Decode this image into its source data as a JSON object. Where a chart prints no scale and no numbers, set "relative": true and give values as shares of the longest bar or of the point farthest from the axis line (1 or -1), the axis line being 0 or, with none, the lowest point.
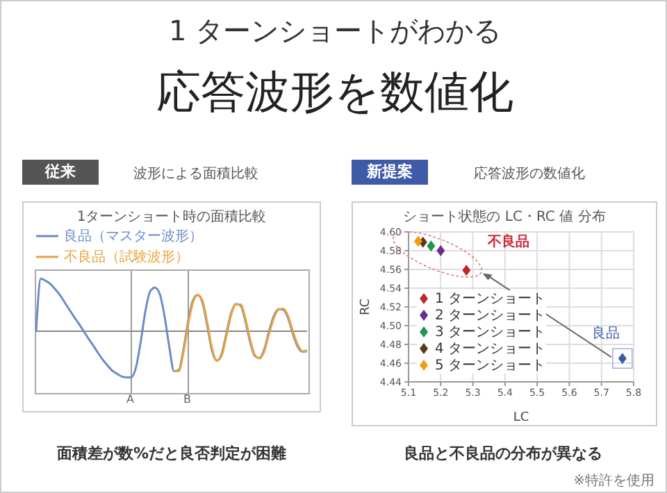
{
  "chart_data": [
    {
      "type": "line",
      "title": "1ターンショート時の面積比較",
      "relative": true,
      "legend": "top",
      "categories": [
        null,
        null,
        null,
        null,
        null,
        null,
        null,
        null,
        null,
        null,
        null,
        null,
        null,
        null,
        null,
        null,
        null,
        null,
        null,
        null,
        null,
        null,
        null,
        null,
        null,
        null,
        null,
        null,
        null,
        null,
        null,
        null,
        null,
        null,
        null,
        null,
        null,
        null,
        null,
        null,
        null,
        null,
        null,
        null,
        null,
        null,
        null,
        null,
        null,
        null,
        null,
        null,
        null,
        null,
        null,
        null,
        null,
        null
      ],
      "series": [
        {
          "name": "良品（マスター波形）",
          "color": "#6b8cc7",
          "values": [
            0,
            1.0,
            0.96,
            0.9,
            0.8,
            0.69,
            0.55,
            0.41,
            0.27,
            0.14,
            0,
            -0.14,
            -0.27,
            -0.41,
            -0.54,
            -0.65,
            -0.75,
            -0.81,
            -0.86,
            -0.88,
            -0.88,
            -0.69,
            -0.2,
            0.39,
            0.76,
            0.83,
            0.71,
            0.29,
            -0.29,
            -0.76,
            -0.74,
            -0.34,
            0.2,
            0.59,
            0.69,
            0.54,
            0.1,
            -0.37,
            -0.56,
            -0.44,
            -0.05,
            0.34,
            0.52,
            0.49,
            0.2,
            -0.2,
            -0.47,
            -0.51,
            -0.34,
            0,
            0.29,
            0.42,
            0.41,
            0.25,
            -0.05,
            -0.29,
            -0.39,
            -0.37
          ]
        },
        {
          "name": "不良品（試験波形）",
          "color": "#e8a33c",
          "values": [
            null,
            null,
            null,
            null,
            null,
            null,
            null,
            null,
            null,
            null,
            null,
            null,
            null,
            null,
            null,
            null,
            null,
            null,
            null,
            null,
            null,
            null,
            null,
            null,
            null,
            null,
            null,
            null,
            null,
            -0.76,
            -0.76,
            -0.4,
            0.14,
            0.55,
            0.69,
            0.58,
            0.16,
            -0.32,
            -0.56,
            -0.47,
            -0.1,
            0.3,
            0.51,
            0.51,
            0.25,
            -0.15,
            -0.45,
            -0.52,
            -0.38,
            -0.05,
            0.25,
            0.41,
            0.43,
            0.29,
            0,
            -0.25,
            -0.38,
            -0.39
          ]
        }
      ],
      "annotations": [
        "1 ターンショートがわかる",
        "応答波形を数値化",
        "従来",
        "波形による面積比較",
        "面積差が数%だと良否判定が困難",
        "A",
        "B"
      ]
    },
    {
      "type": "scatter",
      "title": "ショート状態の LC・RC 値 分布",
      "xlabel": "LC",
      "ylabel": "RC",
      "marker": "diamond",
      "grid": true,
      "legend": "left",
      "xlim": [
        5.1,
        5.8
      ],
      "xticks": [
        5.1,
        5.2,
        5.3,
        5.4,
        5.5,
        5.6,
        5.7,
        5.8
      ],
      "ylim": [
        4.44,
        4.6
      ],
      "yticks": [
        {
          "value": 4.44,
          "label": "4.44"
        },
        {
          "value": 4.46,
          "label": "4.46"
        },
        {
          "value": 4.48,
          "label": "4.48"
        },
        {
          "value": 4.5,
          "label": "4.50"
        },
        {
          "value": 4.52,
          "label": "4.52"
        },
        {
          "value": 4.54,
          "label": "4.54"
        },
        {
          "value": 4.56,
          "label": "4.56"
        },
        {
          "value": 4.58,
          "label": "4.58"
        },
        {
          "value": 4.6,
          "label": "4.60"
        }
      ],
      "series": [
        {
          "name": "1 ターンショート",
          "color": "#c0282e",
          "x": [
            5.28
          ],
          "values": [
            4.559
          ]
        },
        {
          "name": "2 ターンショート",
          "color": "#6a2c91",
          "x": [
            5.2
          ],
          "values": [
            4.58
          ]
        },
        {
          "name": "3 ターンショート",
          "color": "#1a9850",
          "x": [
            5.17
          ],
          "values": [
            4.585
          ]
        },
        {
          "name": "4 ターンショート",
          "color": "#5b3a1e",
          "x": [
            5.145
          ],
          "values": [
            4.589
          ]
        },
        {
          "name": "5 ターンショート",
          "color": "#f39c12",
          "x": [
            5.13
          ],
          "values": [
            4.59
          ]
        },
        {
          "name": "良品",
          "color": "#3b5ba7",
          "x": [
            5.765
          ],
          "values": [
            4.465
          ]
        }
      ],
      "annotations": [
        "新提案",
        "応答波形の数値化",
        "不良品",
        "良品と不良品の分布が異なる",
        "※特許を使用"
      ]
    }
  ]
}
